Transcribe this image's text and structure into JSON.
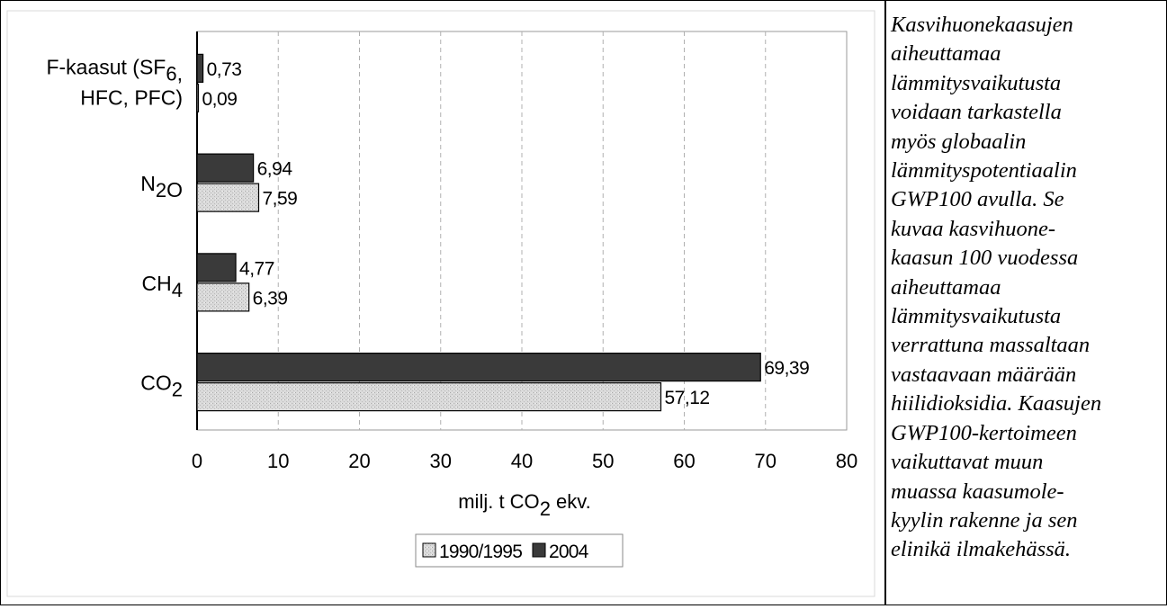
{
  "chart_data": {
    "type": "bar",
    "orientation": "horizontal",
    "categories": [
      {
        "lines": [
          [
            {
              "t": "F-kaasut (SF"
            },
            {
              "t": "6",
              "sub": true
            },
            {
              "t": ","
            }
          ],
          [
            {
              "t": "HFC, PFC)"
            }
          ]
        ],
        "text": "F-kaasut (SF6, HFC, PFC)"
      },
      {
        "lines": [
          [
            {
              "t": "N"
            },
            {
              "t": "2",
              "sub": true
            },
            {
              "t": "O"
            }
          ]
        ],
        "text": "N2O"
      },
      {
        "lines": [
          [
            {
              "t": "CH"
            },
            {
              "t": "4",
              "sub": true
            }
          ]
        ],
        "text": "CH4"
      },
      {
        "lines": [
          [
            {
              "t": "CO"
            },
            {
              "t": "2",
              "sub": true
            }
          ]
        ],
        "text": "CO2"
      }
    ],
    "series": [
      {
        "name": "2004",
        "color": "#3a3a3a",
        "values": [
          0.73,
          6.94,
          4.77,
          69.39
        ],
        "labels": [
          "0,73",
          "6,94",
          "4,77",
          "69,39"
        ]
      },
      {
        "name": "1990/1995",
        "color": "#d9d9d9",
        "values": [
          0.09,
          7.59,
          6.39,
          57.12
        ],
        "labels": [
          "0,09",
          "7,59",
          "6,39",
          "57,12"
        ]
      }
    ],
    "xlim": [
      0,
      80
    ],
    "xticks": [
      "0",
      "10",
      "20",
      "30",
      "40",
      "50",
      "60",
      "70",
      "80"
    ],
    "xlabel": {
      "text": "milj. t CO2 ekv.",
      "pre": "milj. t CO",
      "sub": "2",
      "post": " ekv."
    },
    "grid": "dashed vertical",
    "legend": {
      "position": "bottom",
      "order": [
        "1990/1995",
        "2004"
      ]
    }
  },
  "side_text": [
    "Kasvihuonekaasujen",
    "aiheuttamaa",
    "lämmitysvaikutusta",
    "voidaan tarkastella",
    "myös globaalin",
    "lämmityspotentiaalin",
    "GWP100 avulla. Se",
    "kuvaa kasvihuone-",
    "kaasun 100 vuodessa",
    "aiheuttamaa",
    "lämmitysvaikutusta",
    "verrattuna massaltaan",
    "vastaavaan määrään",
    "hiilidioksidia. Kaasujen",
    "GWP100-kertoimeen",
    "vaikuttavat muun",
    "muassa kaasumole-",
    "kyylin rakenne ja sen",
    "elinikä ilmakehässä."
  ]
}
